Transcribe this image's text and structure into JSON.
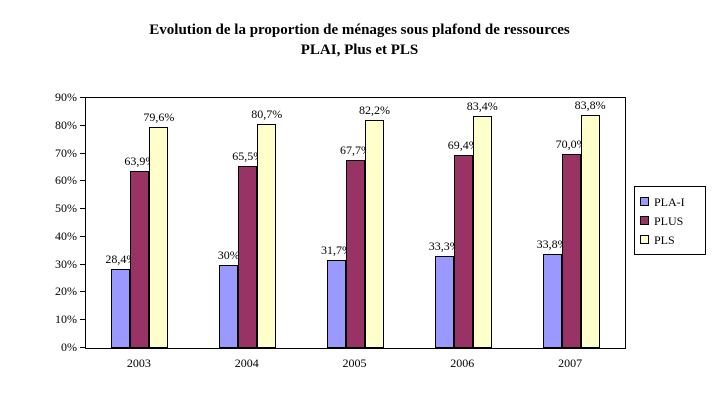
{
  "title": {
    "line1": "Evolution de la proportion de ménages sous plafond de ressources",
    "line2": "PLAI, Plus et PLS"
  },
  "chart_data": {
    "type": "bar",
    "categories": [
      "2003",
      "2004",
      "2005",
      "2006",
      "2007"
    ],
    "series": [
      {
        "name": "PLA-I",
        "color": "#9999FF",
        "values": [
          28.4,
          30,
          31.7,
          33.3,
          33.8
        ],
        "labels": [
          "28,4%",
          "30%",
          "31,7%",
          "33,3%",
          "33,8%"
        ]
      },
      {
        "name": "PLUS",
        "color": "#993366",
        "values": [
          63.9,
          65.5,
          67.7,
          69.4,
          70.0
        ],
        "labels": [
          "63,9%",
          "65,5%",
          "67,7%",
          "69,4%",
          "70,0%"
        ]
      },
      {
        "name": "PLS",
        "color": "#FFFFCC",
        "values": [
          79.6,
          80.7,
          82.2,
          83.4,
          83.8
        ],
        "labels": [
          "79,6%",
          "80,7%",
          "82,2%",
          "83,4%",
          "83,8%"
        ]
      }
    ],
    "ylim": [
      0,
      90
    ],
    "ytick_step": 10,
    "ytick_labels": [
      "0%",
      "10%",
      "20%",
      "30%",
      "40%",
      "50%",
      "60%",
      "70%",
      "80%",
      "90%"
    ],
    "grid": false,
    "legend_position": "right",
    "bar_border_color": "#000000",
    "plot_background": "#FFFFFF"
  }
}
